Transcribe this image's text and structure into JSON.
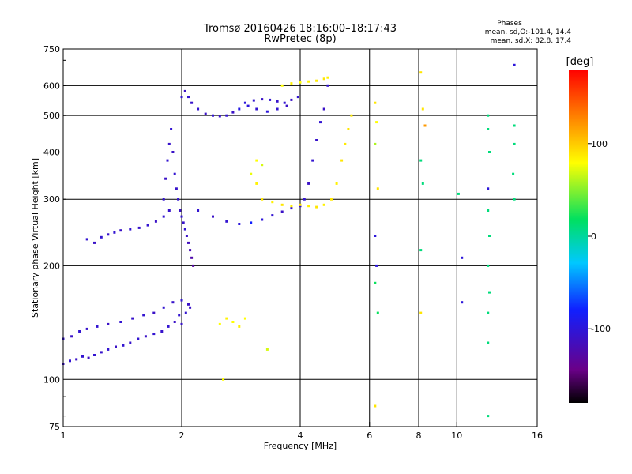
{
  "header": {
    "title": "Tromsø 20160426 18:16:00–18:17:43",
    "subtitle": "RwPretec (8p)",
    "phase_title": "Phases",
    "phase_o": "mean, sd,O:-101.4, 14.4",
    "phase_x": "mean, sd,X:  82.8, 17.4"
  },
  "colorbar": {
    "unit_label": "[deg]",
    "tick_labels": [
      "100",
      "0",
      "-100"
    ],
    "tick_values": [
      100,
      0,
      -100
    ],
    "range": [
      -180,
      180
    ],
    "colormap": "rainbow: black-purple-blue-cyan-green-yellow-orange-red"
  },
  "chart_data": {
    "type": "scatter",
    "xlabel": "Frequency [MHz]",
    "ylabel": "Stationary phase Virtual Height [km]",
    "x_scale": "log",
    "y_scale": "log",
    "xlim": [
      1,
      16
    ],
    "ylim": [
      75,
      750
    ],
    "x_ticks": [
      1,
      2,
      4,
      6,
      8,
      10,
      16
    ],
    "x_tick_labels": [
      "1",
      "2",
      "4",
      "6",
      "8",
      "10",
      "16"
    ],
    "y_ticks": [
      75,
      100,
      200,
      300,
      400,
      500,
      600,
      750
    ],
    "y_tick_labels": [
      "75",
      "100",
      "200",
      "300",
      "400",
      "500",
      "600",
      "750"
    ],
    "grid": true,
    "color_encodes": "phase (deg)",
    "series": [
      {
        "points": [
          [
            1.0,
            110,
            -110
          ],
          [
            1.04,
            112,
            -105
          ],
          [
            1.08,
            113,
            -110
          ],
          [
            1.12,
            115,
            -105
          ],
          [
            1.16,
            114,
            -112
          ],
          [
            1.2,
            116,
            -105
          ],
          [
            1.25,
            118,
            -108
          ],
          [
            1.3,
            120,
            -105
          ],
          [
            1.36,
            122,
            -110
          ],
          [
            1.42,
            123,
            -105
          ],
          [
            1.48,
            125,
            -108
          ],
          [
            1.55,
            128,
            -105
          ],
          [
            1.62,
            130,
            -110
          ],
          [
            1.7,
            132,
            -105
          ],
          [
            1.78,
            134,
            -108
          ],
          [
            1.85,
            138,
            -105
          ],
          [
            1.92,
            142,
            -110
          ],
          [
            1.97,
            148,
            -105
          ],
          [
            2.0,
            140,
            -108
          ],
          [
            2.05,
            150,
            -105
          ],
          [
            2.1,
            155,
            -110
          ]
        ]
      },
      {
        "points": [
          [
            1.0,
            128,
            -105
          ],
          [
            1.05,
            130,
            -110
          ],
          [
            1.1,
            134,
            -105
          ],
          [
            1.15,
            136,
            -108
          ],
          [
            1.22,
            138,
            -105
          ],
          [
            1.3,
            140,
            -110
          ],
          [
            1.4,
            142,
            -105
          ],
          [
            1.5,
            145,
            -108
          ],
          [
            1.6,
            148,
            -105
          ],
          [
            1.7,
            150,
            -110
          ],
          [
            1.8,
            155,
            -105
          ],
          [
            1.9,
            160,
            -108
          ],
          [
            2.0,
            162,
            -105
          ],
          [
            2.08,
            158,
            -110
          ]
        ]
      },
      {
        "points": [
          [
            1.15,
            235,
            -105
          ],
          [
            1.2,
            230,
            -110
          ],
          [
            1.25,
            238,
            -105
          ],
          [
            1.3,
            242,
            -108
          ],
          [
            1.35,
            245,
            -105
          ],
          [
            1.4,
            248,
            -110
          ],
          [
            1.48,
            250,
            -105
          ],
          [
            1.56,
            252,
            -108
          ],
          [
            1.64,
            256,
            -105
          ],
          [
            1.72,
            262,
            -110
          ],
          [
            1.8,
            270,
            -105
          ],
          [
            1.86,
            280,
            -108
          ]
        ]
      },
      {
        "points": [
          [
            1.8,
            300,
            -105
          ],
          [
            1.82,
            340,
            -110
          ],
          [
            1.84,
            380,
            -105
          ],
          [
            1.86,
            420,
            -108
          ],
          [
            1.88,
            460,
            -105
          ],
          [
            1.9,
            400,
            -110
          ],
          [
            1.92,
            350,
            -105
          ],
          [
            1.94,
            320,
            -108
          ],
          [
            1.96,
            300,
            -105
          ],
          [
            1.98,
            280,
            -110
          ],
          [
            2.0,
            270,
            -105
          ],
          [
            2.02,
            260,
            -108
          ],
          [
            2.04,
            250,
            -105
          ],
          [
            2.06,
            240,
            -110
          ],
          [
            2.08,
            230,
            -115
          ],
          [
            2.1,
            220,
            -120
          ],
          [
            2.12,
            210,
            -125
          ],
          [
            2.14,
            200,
            -130
          ]
        ]
      },
      {
        "points": [
          [
            2.0,
            560,
            -105
          ],
          [
            2.04,
            580,
            -110
          ],
          [
            2.08,
            560,
            -105
          ],
          [
            2.12,
            540,
            -108
          ],
          [
            2.2,
            520,
            -105
          ],
          [
            2.3,
            505,
            -110
          ],
          [
            2.4,
            500,
            -105
          ],
          [
            2.5,
            498,
            -108
          ],
          [
            2.6,
            500,
            -105
          ],
          [
            2.7,
            510,
            -110
          ]
        ]
      },
      {
        "points": [
          [
            2.2,
            280,
            -105
          ],
          [
            2.4,
            270,
            -110
          ],
          [
            2.6,
            262,
            -105
          ],
          [
            2.8,
            258,
            -100
          ],
          [
            3.0,
            260,
            -80
          ],
          [
            3.2,
            265,
            -100
          ],
          [
            3.4,
            272,
            -105
          ],
          [
            3.6,
            278,
            -110
          ],
          [
            3.8,
            284,
            -105
          ],
          [
            4.0,
            288,
            -108
          ],
          [
            4.1,
            300,
            -105
          ],
          [
            4.2,
            330,
            -110
          ],
          [
            4.3,
            380,
            -105
          ],
          [
            4.4,
            430,
            -108
          ],
          [
            4.5,
            480,
            -105
          ],
          [
            4.6,
            520,
            -110
          ],
          [
            4.7,
            600,
            -105
          ]
        ]
      },
      {
        "points": [
          [
            2.9,
            540,
            -100
          ],
          [
            3.05,
            548,
            -105
          ],
          [
            3.2,
            552,
            -110
          ],
          [
            3.35,
            550,
            -105
          ],
          [
            3.5,
            545,
            -108
          ],
          [
            3.65,
            540,
            -105
          ],
          [
            3.8,
            550,
            -110
          ],
          [
            3.95,
            560,
            -105
          ],
          [
            2.8,
            520,
            -95
          ],
          [
            2.95,
            530,
            -100
          ],
          [
            3.1,
            520,
            -105
          ],
          [
            3.3,
            512,
            -100
          ],
          [
            3.5,
            520,
            -105
          ],
          [
            3.7,
            530,
            -110
          ]
        ]
      },
      {
        "points": [
          [
            3.0,
            350,
            75
          ],
          [
            3.1,
            380,
            80
          ],
          [
            3.2,
            370,
            70
          ],
          [
            3.1,
            330,
            85
          ],
          [
            3.2,
            300,
            90
          ],
          [
            3.4,
            295,
            85
          ],
          [
            3.6,
            290,
            90
          ],
          [
            3.8,
            288,
            85
          ],
          [
            4.0,
            290,
            90
          ],
          [
            4.2,
            288,
            85
          ],
          [
            4.4,
            286,
            90
          ],
          [
            4.6,
            290,
            85
          ],
          [
            4.8,
            300,
            90
          ],
          [
            4.95,
            330,
            85
          ],
          [
            5.1,
            380,
            90
          ],
          [
            5.2,
            420,
            88
          ],
          [
            5.3,
            460,
            90
          ],
          [
            5.4,
            500,
            88
          ]
        ]
      },
      {
        "points": [
          [
            3.6,
            600,
            80
          ],
          [
            3.8,
            608,
            85
          ],
          [
            4.0,
            612,
            80
          ],
          [
            4.2,
            615,
            85
          ],
          [
            4.4,
            618,
            88
          ],
          [
            4.6,
            625,
            90
          ],
          [
            4.7,
            630,
            85
          ]
        ]
      },
      {
        "points": [
          [
            2.5,
            140,
            80
          ],
          [
            2.6,
            145,
            85
          ],
          [
            2.7,
            142,
            80
          ],
          [
            2.8,
            138,
            85
          ],
          [
            2.9,
            145,
            80
          ],
          [
            2.55,
            100,
            80
          ],
          [
            3.3,
            120,
            70
          ]
        ]
      },
      {
        "points": [
          [
            6.2,
            540,
            90
          ],
          [
            6.25,
            480,
            80
          ],
          [
            6.2,
            420,
            60
          ],
          [
            6.3,
            320,
            90
          ],
          [
            6.2,
            240,
            -100
          ],
          [
            6.25,
            200,
            -100
          ],
          [
            6.2,
            180,
            20
          ],
          [
            6.3,
            150,
            20
          ],
          [
            6.2,
            85,
            90
          ],
          [
            8.1,
            650,
            90
          ],
          [
            8.2,
            520,
            90
          ],
          [
            8.3,
            470,
            120
          ],
          [
            8.1,
            380,
            10
          ],
          [
            8.2,
            330,
            10
          ],
          [
            8.1,
            220,
            10
          ],
          [
            8.1,
            150,
            90
          ],
          [
            10.1,
            310,
            10
          ],
          [
            10.3,
            210,
            -100
          ],
          [
            10.3,
            160,
            -100
          ],
          [
            12.0,
            500,
            10
          ],
          [
            12.0,
            460,
            10
          ],
          [
            12.1,
            400,
            10
          ],
          [
            12.0,
            320,
            -100
          ],
          [
            12.0,
            280,
            10
          ],
          [
            12.1,
            240,
            10
          ],
          [
            12.0,
            200,
            10
          ],
          [
            12.1,
            170,
            10
          ],
          [
            12.0,
            150,
            10
          ],
          [
            12.0,
            125,
            10
          ],
          [
            12.0,
            80,
            10
          ],
          [
            14.0,
            680,
            -100
          ],
          [
            14.0,
            470,
            10
          ],
          [
            14.0,
            420,
            10
          ],
          [
            13.9,
            350,
            10
          ],
          [
            14.0,
            300,
            10
          ]
        ]
      }
    ]
  }
}
